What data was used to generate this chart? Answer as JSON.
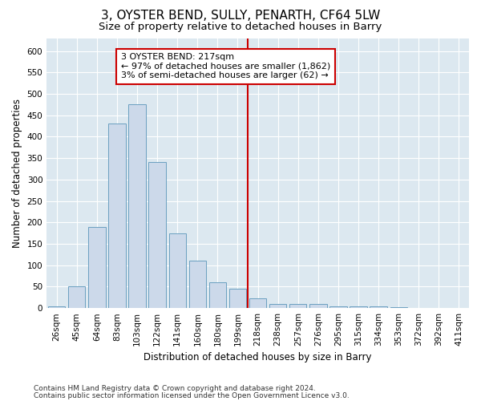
{
  "title": "3, OYSTER BEND, SULLY, PENARTH, CF64 5LW",
  "subtitle": "Size of property relative to detached houses in Barry",
  "xlabel": "Distribution of detached houses by size in Barry",
  "ylabel": "Number of detached properties",
  "footnote1": "Contains HM Land Registry data © Crown copyright and database right 2024.",
  "footnote2": "Contains public sector information licensed under the Open Government Licence v3.0.",
  "bar_labels": [
    "26sqm",
    "45sqm",
    "64sqm",
    "83sqm",
    "103sqm",
    "122sqm",
    "141sqm",
    "160sqm",
    "180sqm",
    "199sqm",
    "218sqm",
    "238sqm",
    "257sqm",
    "276sqm",
    "295sqm",
    "315sqm",
    "334sqm",
    "353sqm",
    "372sqm",
    "392sqm",
    "411sqm"
  ],
  "bar_values": [
    5,
    50,
    190,
    430,
    475,
    340,
    175,
    110,
    60,
    45,
    22,
    10,
    10,
    10,
    5,
    5,
    5,
    2,
    1,
    1,
    1
  ],
  "bar_color": "#ccd9ea",
  "bar_edge_color": "#6a9fc0",
  "ylim": [
    0,
    630
  ],
  "yticks": [
    0,
    50,
    100,
    150,
    200,
    250,
    300,
    350,
    400,
    450,
    500,
    550,
    600
  ],
  "vline_index": 10,
  "annotation_text": "3 OYSTER BEND: 217sqm\n← 97% of detached houses are smaller (1,862)\n3% of semi-detached houses are larger (62) →",
  "annotation_box_color": "#ffffff",
  "annotation_box_edge": "#cc0000",
  "vline_color": "#cc0000",
  "background_color": "#dce8f0",
  "grid_color": "#ffffff",
  "fig_background": "#ffffff",
  "title_fontsize": 11,
  "subtitle_fontsize": 9.5,
  "axis_label_fontsize": 8.5,
  "tick_fontsize": 7.5,
  "annotation_fontsize": 8,
  "footnote_fontsize": 6.5
}
